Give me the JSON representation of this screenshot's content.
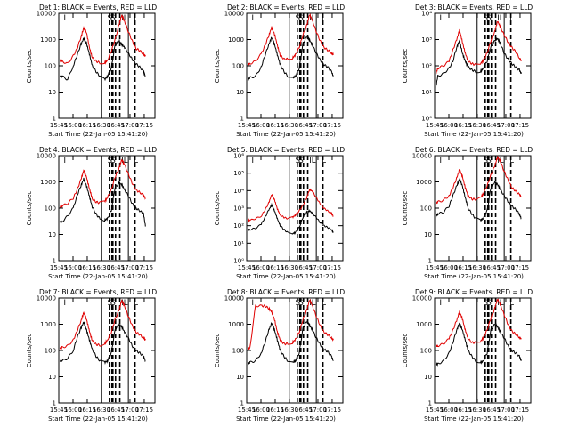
{
  "figure": {
    "common": {
      "type": "line",
      "xlabel": "Start Time (22-Jan-05 15:41:20)",
      "ylabel": "Counts/sec",
      "x_ticks": [
        "15:45",
        "16:00",
        "16:15",
        "16:30",
        "16:45",
        "17:00",
        "17:15"
      ],
      "x_tick_minutes": [
        -3.3,
        11.7,
        26.7,
        41.7,
        56.7,
        71.7,
        86.7
      ],
      "xlim_minutes_from_start": [
        -3.3,
        98
      ],
      "series_colors": {
        "events": "#000000",
        "lld": "#e00000"
      },
      "markers": {
        "solid": [
          41.5,
          70.0
        ],
        "dashed": [
          50.0,
          52.7,
          53.7,
          56.5,
          61.0,
          77.0
        ],
        "marker_labels": [
          "I",
          "S",
          "S",
          "IL",
          "L"
        ]
      }
    },
    "chart_data": [
      {
        "type": "line",
        "title": "Det 1: BLACK = Events, RED = LLD",
        "yscale": "log",
        "ylim": [
          1,
          10000
        ],
        "y_ticks": [
          "1",
          "10",
          "100",
          "1000",
          "10000"
        ],
        "x_minutes": [
          -2,
          0,
          6,
          12,
          16,
          20,
          23,
          26,
          29,
          32,
          36,
          40,
          45,
          48,
          52,
          56,
          60,
          63,
          66,
          70,
          74,
          78,
          82,
          86,
          88
        ],
        "series": [
          {
            "name": "BLACK = Events",
            "values": [
              40,
              40,
              30,
              100,
              250,
              650,
              1100,
              700,
              280,
              100,
              60,
              40,
              30,
              40,
              80,
              600,
              900,
              650,
              500,
              300,
              180,
              120,
              90,
              60,
              40
            ]
          },
          {
            "name": "RED = LLD",
            "values": [
              150,
              150,
              120,
              240,
              450,
              1200,
              2800,
              1800,
              500,
              200,
              150,
              130,
              130,
              160,
              350,
              1000,
              3500,
              8500,
              5000,
              2000,
              900,
              450,
              380,
              280,
              230
            ]
          }
        ]
      },
      {
        "type": "line",
        "title": "Det 2: BLACK = Events, RED = LLD",
        "yscale": "log",
        "ylim": [
          1,
          10000
        ],
        "y_ticks": [
          "1",
          "10",
          "100",
          "1000",
          "10000"
        ],
        "x_minutes": [
          -2,
          0,
          6,
          12,
          16,
          20,
          23,
          26,
          29,
          32,
          36,
          40,
          45,
          48,
          52,
          56,
          60,
          63,
          66,
          70,
          74,
          78,
          82,
          86,
          88
        ],
        "series": [
          {
            "name": "BLACK = Events",
            "values": [
              30,
              35,
              40,
              90,
              250,
              650,
              1200,
              650,
              260,
              110,
              60,
              40,
              35,
              40,
              80,
              700,
              1300,
              950,
              600,
              300,
              170,
              110,
              90,
              60,
              40
            ]
          },
          {
            "name": "RED = LLD",
            "values": [
              110,
              120,
              150,
              280,
              600,
              1400,
              2900,
              1600,
              600,
              250,
              180,
              180,
              200,
              260,
              500,
              1500,
              3500,
              9000,
              5200,
              2000,
              900,
              500,
              400,
              300,
              260
            ]
          }
        ]
      },
      {
        "type": "line",
        "title": "Det 3: BLACK = Events, RED = LLD",
        "yscale": "log",
        "ylim": [
          1,
          10000
        ],
        "y_ticks": [
          "10⁰",
          "10¹",
          "10²",
          "10³",
          "10⁴"
        ],
        "x_minutes": [
          -2,
          0,
          6,
          12,
          16,
          20,
          23,
          26,
          29,
          32,
          36,
          40,
          45,
          48,
          52,
          56,
          60,
          63,
          66,
          70,
          74,
          78,
          82,
          86,
          88
        ],
        "series": [
          {
            "name": "BLACK = Events",
            "values": [
              15,
              40,
              50,
              80,
              150,
              500,
              900,
              300,
              150,
              90,
              70,
              60,
              60,
              80,
              150,
              500,
              900,
              1100,
              700,
              300,
              180,
              120,
              90,
              70,
              50
            ]
          },
          {
            "name": "RED = LLD",
            "values": [
              50,
              80,
              100,
              150,
              400,
              1000,
              2300,
              800,
              300,
              150,
              120,
              110,
              120,
              160,
              300,
              900,
              2000,
              5000,
              3000,
              1500,
              800,
              500,
              350,
              200,
              150
            ]
          }
        ]
      },
      {
        "type": "line",
        "title": "Det 4: BLACK = Events, RED = LLD",
        "yscale": "log",
        "ylim": [
          1,
          10000
        ],
        "y_ticks": [
          "1",
          "10",
          "100",
          "1000",
          "10000"
        ],
        "x_minutes": [
          -2,
          0,
          6,
          12,
          16,
          20,
          23,
          26,
          29,
          32,
          36,
          40,
          45,
          48,
          52,
          56,
          60,
          63,
          66,
          70,
          74,
          78,
          82,
          86,
          88
        ],
        "series": [
          {
            "name": "BLACK = Events",
            "values": [
              30,
              30,
              50,
              100,
              300,
              700,
              1300,
              700,
              280,
              110,
              60,
              40,
              35,
              40,
              80,
              600,
              900,
              800,
              500,
              300,
              150,
              100,
              80,
              60,
              20
            ]
          },
          {
            "name": "RED = LLD",
            "values": [
              110,
              120,
              150,
              240,
              500,
              1200,
              2800,
              1500,
              550,
              230,
              170,
              160,
              180,
              250,
              500,
              1500,
              3200,
              7000,
              4500,
              2000,
              900,
              500,
              400,
              300,
              240
            ]
          }
        ]
      },
      {
        "type": "line",
        "title": "Det 5: BLACK = Events, RED = LLD",
        "yscale": "log",
        "ylim": [
          1,
          1000000
        ],
        "y_ticks": [
          "10⁰",
          "10¹",
          "10²",
          "10³",
          "10⁴",
          "10⁵",
          "10⁶"
        ],
        "x_minutes": [
          -2,
          0,
          6,
          12,
          16,
          20,
          23,
          26,
          29,
          32,
          36,
          40,
          45,
          48,
          52,
          56,
          60,
          63,
          66,
          70,
          74,
          78,
          82,
          86,
          88
        ],
        "series": [
          {
            "name": "BLACK = Events",
            "values": [
              60,
              60,
              70,
              120,
              300,
              800,
              1500,
              700,
              250,
              100,
              60,
              40,
              35,
              40,
              80,
              300,
              600,
              700,
              500,
              300,
              150,
              100,
              80,
              60,
              40
            ]
          },
          {
            "name": "RED = LLD",
            "values": [
              200,
              200,
              250,
              350,
              800,
              2000,
              6000,
              3000,
              900,
              400,
              300,
              250,
              300,
              400,
              700,
              1500,
              4000,
              12000,
              9000,
              4000,
              1800,
              1000,
              700,
              500,
              350
            ]
          }
        ]
      },
      {
        "type": "line",
        "title": "Det 6: BLACK = Events, RED = LLD",
        "yscale": "log",
        "ylim": [
          1,
          10000
        ],
        "y_ticks": [
          "1",
          "10",
          "100",
          "1000",
          "10000"
        ],
        "x_minutes": [
          -2,
          0,
          6,
          12,
          16,
          20,
          23,
          26,
          29,
          32,
          36,
          40,
          45,
          48,
          52,
          56,
          60,
          63,
          66,
          70,
          74,
          78,
          82,
          86,
          88
        ],
        "series": [
          {
            "name": "BLACK = Events",
            "values": [
              50,
              60,
              70,
              120,
              300,
              700,
              1300,
              700,
              250,
              100,
              60,
              40,
              35,
              40,
              80,
              600,
              1000,
              800,
              500,
              300,
              180,
              120,
              90,
              60,
              40
            ]
          },
          {
            "name": "RED = LLD",
            "values": [
              150,
              170,
              200,
              300,
              600,
              1400,
              3000,
              1600,
              600,
              300,
              220,
              220,
              250,
              350,
              700,
              1800,
              4000,
              9000,
              6000,
              2500,
              1200,
              600,
              450,
              330,
              280
            ]
          }
        ]
      },
      {
        "type": "line",
        "title": "Det 7: BLACK = Events, RED = LLD",
        "yscale": "log",
        "ylim": [
          1,
          10000
        ],
        "y_ticks": [
          "1",
          "10",
          "100",
          "1000",
          "10000"
        ],
        "x_minutes": [
          -2,
          0,
          6,
          12,
          16,
          20,
          23,
          26,
          29,
          32,
          36,
          40,
          45,
          48,
          52,
          56,
          60,
          63,
          66,
          70,
          74,
          78,
          82,
          86,
          88
        ],
        "series": [
          {
            "name": "BLACK = Events",
            "values": [
              40,
              40,
              50,
              100,
              300,
              700,
              1200,
              600,
              250,
              110,
              60,
              40,
              35,
              40,
              80,
              600,
              1000,
              800,
              500,
              300,
              150,
              100,
              80,
              60,
              40
            ]
          },
          {
            "name": "RED = LLD",
            "values": [
              120,
              130,
              150,
              250,
              550,
              1300,
              2800,
              1500,
              550,
              230,
              170,
              160,
              180,
              250,
              500,
              1500,
              3300,
              8000,
              5000,
              2000,
              900,
              500,
              400,
              300,
              250
            ]
          }
        ]
      },
      {
        "type": "line",
        "title": "Det 8: BLACK = Events, RED = LLD",
        "yscale": "log",
        "ylim": [
          1,
          10000
        ],
        "y_ticks": [
          "1",
          "10",
          "100",
          "1000",
          "10000"
        ],
        "x_minutes": [
          -2,
          0,
          6,
          12,
          16,
          20,
          23,
          26,
          29,
          32,
          36,
          40,
          45,
          48,
          52,
          56,
          60,
          63,
          66,
          70,
          74,
          78,
          82,
          86,
          88
        ],
        "series": [
          {
            "name": "BLACK = Events",
            "values": [
              30,
              35,
              40,
              80,
              200,
              600,
              1100,
              600,
              250,
              100,
              60,
              40,
              35,
              40,
              80,
              700,
              1300,
              900,
              600,
              300,
              170,
              110,
              90,
              60,
              40
            ]
          },
          {
            "name": "RED = LLD",
            "values": [
              120,
              120,
              5000,
              5000,
              5000,
              4000,
              3000,
              1500,
              500,
              250,
              180,
              180,
              200,
              260,
              500,
              1500,
              3500,
              8500,
              5000,
              2000,
              900,
              500,
              400,
              300,
              250
            ]
          }
        ]
      },
      {
        "type": "line",
        "title": "Det 9: BLACK = Events, RED = LLD",
        "yscale": "log",
        "ylim": [
          1,
          10000
        ],
        "y_ticks": [
          "1",
          "10",
          "100",
          "1000",
          "10000"
        ],
        "x_minutes": [
          -2,
          0,
          6,
          12,
          16,
          20,
          23,
          26,
          29,
          32,
          36,
          40,
          45,
          48,
          52,
          56,
          60,
          63,
          66,
          70,
          74,
          78,
          82,
          86,
          88
        ],
        "series": [
          {
            "name": "BLACK = Events",
            "values": [
              30,
              30,
              40,
              80,
              200,
              600,
              1100,
              600,
              250,
              100,
              60,
              40,
              35,
              40,
              80,
              600,
              1000,
              800,
              500,
              300,
              150,
              100,
              80,
              60,
              40
            ]
          },
          {
            "name": "RED = LLD",
            "values": [
              150,
              150,
              180,
              280,
              600,
              1400,
              3000,
              1600,
              600,
              280,
              200,
              200,
              220,
              300,
              600,
              1700,
              4000,
              9000,
              5500,
              2300,
              1000,
              550,
              420,
              320,
              270
            ]
          }
        ]
      }
    ]
  }
}
